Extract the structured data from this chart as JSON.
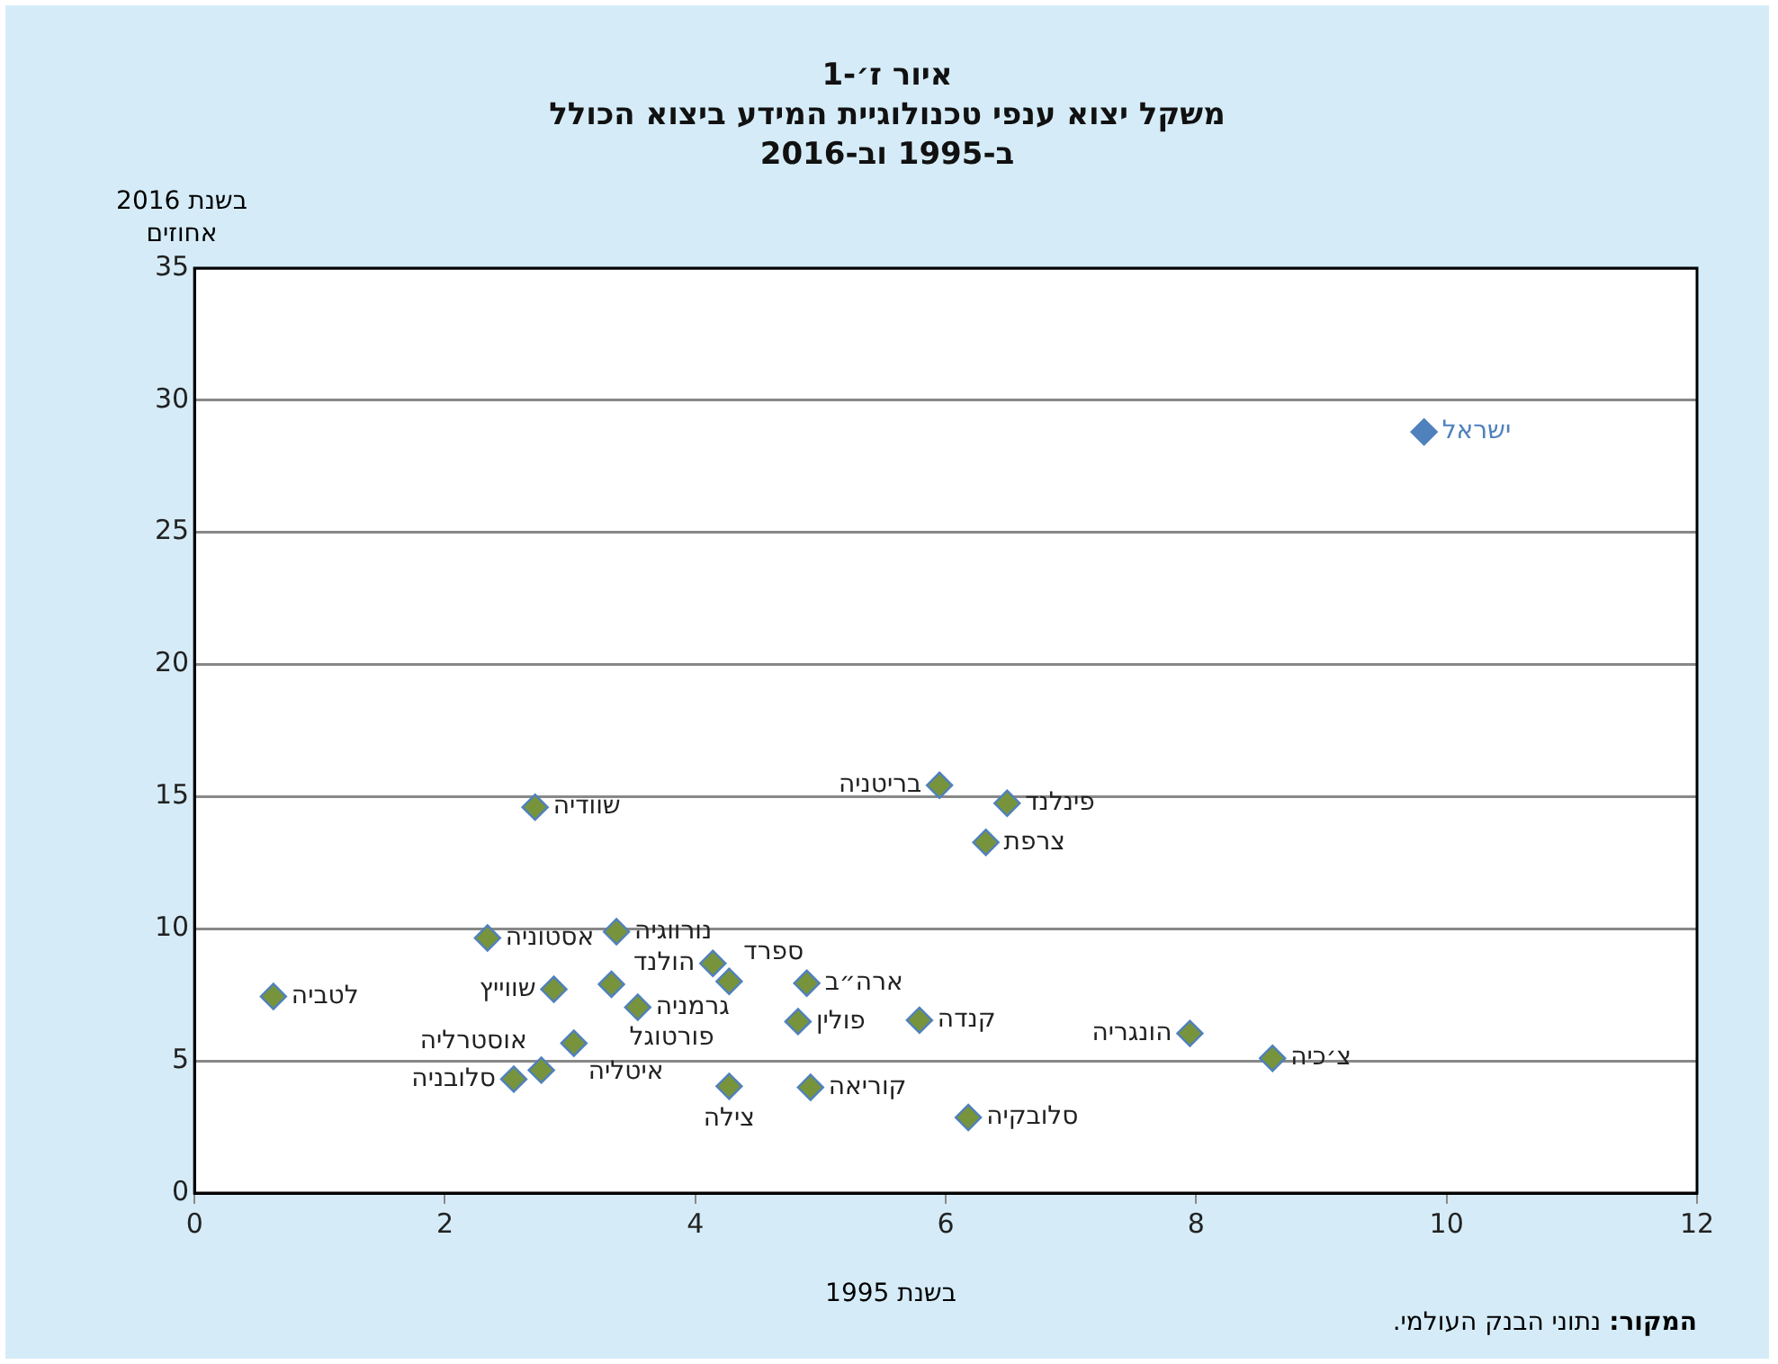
{
  "chart_data": {
    "type": "scatter",
    "title": "איור ז׳-1",
    "subtitle": "משקל יצוא ענפי טכנולוגיית המידע ביצוא הכולל ב-1995 וב-2016",
    "xlabel": "בשנת 1995",
    "ylabel": "בשנת 2016\nאחוזים",
    "xlim": [
      0,
      12
    ],
    "xticks": [
      0,
      2,
      4,
      6,
      8,
      10,
      12
    ],
    "ylim": [
      0,
      35
    ],
    "yticks": [
      0,
      5,
      10,
      15,
      20,
      25,
      30,
      35
    ],
    "grid": "y",
    "marker": "diamond",
    "legend": false,
    "series": [
      {
        "name": "ישראל",
        "color": "#4f81bd",
        "x": [
          9.82
        ],
        "values": [
          28.8
        ]
      },
      {
        "color": "#77933c",
        "x": [
          2.72,
          5.95,
          6.49,
          6.32,
          2.34,
          3.37,
          0.63,
          2.87,
          3.33,
          3.54,
          4.14,
          4.27,
          4.89,
          4.82,
          5.79,
          3.03,
          2.55,
          2.77,
          4.27,
          4.92,
          6.18,
          7.95,
          8.61
        ],
        "values": [
          14.6,
          15.43,
          14.75,
          13.27,
          9.65,
          9.89,
          7.44,
          7.71,
          7.9,
          7.03,
          8.69,
          8.01,
          7.94,
          6.49,
          6.54,
          5.67,
          4.31,
          4.65,
          4.04,
          4.0,
          2.86,
          6.04,
          5.1
        ]
      }
    ],
    "annotations": [
      {
        "text": "שוודיה",
        "x": 2.72,
        "y": 14.6
      },
      {
        "text": "בריטניה",
        "x": 5.95,
        "y": 15.43
      },
      {
        "text": "פינלנד",
        "x": 6.49,
        "y": 14.75
      },
      {
        "text": "צרפת",
        "x": 6.32,
        "y": 13.27
      },
      {
        "text": "אסטוניה",
        "x": 2.34,
        "y": 9.65
      },
      {
        "text": "נורווגיה",
        "x": 3.37,
        "y": 9.89
      },
      {
        "text": "לטביה",
        "x": 0.63,
        "y": 7.44
      },
      {
        "text": "שווייץ",
        "x": 2.87,
        "y": 7.71
      },
      {
        "text": "פורטוגל",
        "x": 3.33,
        "y": 7.9
      },
      {
        "text": "גרמניה",
        "x": 3.54,
        "y": 7.03
      },
      {
        "text": "הולנד",
        "x": 4.14,
        "y": 8.69
      },
      {
        "text": "ספרד",
        "x": 4.27,
        "y": 8.01
      },
      {
        "text": "ארה״ב",
        "x": 4.89,
        "y": 7.94
      },
      {
        "text": "פולין",
        "x": 4.82,
        "y": 6.49
      },
      {
        "text": "קנדה",
        "x": 5.79,
        "y": 6.54
      },
      {
        "text": "איטליה",
        "x": 3.03,
        "y": 5.67
      },
      {
        "text": "סלובניה",
        "x": 2.55,
        "y": 4.31
      },
      {
        "text": "אוסטרליה",
        "x": 2.77,
        "y": 4.65
      },
      {
        "text": "צילה",
        "x": 4.27,
        "y": 4.04
      },
      {
        "text": "קוריאה",
        "x": 4.92,
        "y": 4.0
      },
      {
        "text": "סלובקיה",
        "x": 6.18,
        "y": 2.86
      },
      {
        "text": "הונגריה",
        "x": 7.95,
        "y": 6.04
      },
      {
        "text": "צ׳כיה",
        "x": 8.61,
        "y": 5.1
      },
      "המקור: נתוני הבנק העולמי."
    ]
  }
}
